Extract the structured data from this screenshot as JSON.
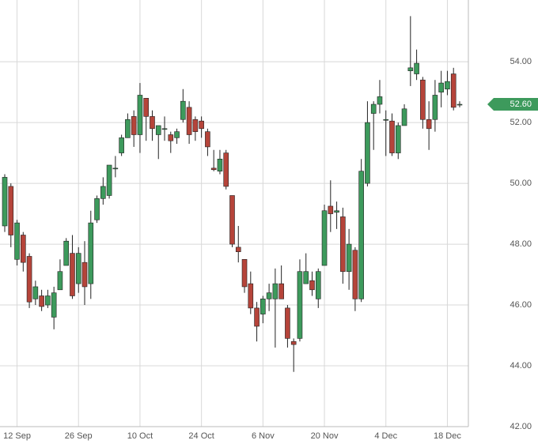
{
  "chart_data": {
    "type": "candlestick",
    "categories": [
      null,
      null,
      "12 Sep",
      null,
      null,
      null,
      null,
      null,
      null,
      null,
      null,
      null,
      "26 Sep",
      null,
      null,
      null,
      null,
      null,
      null,
      null,
      null,
      null,
      "10 Oct",
      null,
      null,
      null,
      null,
      null,
      null,
      null,
      null,
      null,
      "24 Oct",
      null,
      null,
      null,
      null,
      null,
      null,
      null,
      null,
      null,
      "6 Nov",
      null,
      null,
      null,
      null,
      null,
      null,
      null,
      null,
      null,
      "20 Nov",
      null,
      null,
      null,
      null,
      null,
      null,
      null,
      null,
      null,
      "4 Dec",
      null,
      null,
      null,
      null,
      null,
      null,
      null,
      null,
      null,
      "18 Dec",
      null,
      null
    ],
    "open": [
      48.6,
      49.9,
      47.5,
      48.3,
      47.6,
      46.2,
      46.3,
      46.0,
      45.6,
      46.5,
      47.3,
      47.7,
      46.7,
      47.4,
      46.7,
      48.8,
      49.5,
      49.6,
      50.5,
      51.0,
      51.5,
      52.2,
      51.6,
      52.8,
      52.2,
      51.6,
      51.8,
      51.6,
      51.5,
      52.1,
      52.5,
      52.1,
      52.05,
      51.7,
      50.5,
      50.4,
      51.0,
      49.6,
      47.9,
      47.5,
      46.7,
      45.9,
      45.7,
      46.2,
      46.2,
      46.7,
      45.9,
      44.8,
      44.9,
      46.7,
      46.8,
      46.2,
      47.3,
      49.25,
      49.05,
      48.9,
      47.1,
      47.8,
      46.2,
      50.0,
      52.3,
      52.6,
      52.1,
      52.05,
      51.0,
      51.9,
      53.7,
      53.6,
      53.4,
      52.1,
      52.1,
      53.0,
      53.1,
      53.6,
      52.6
    ],
    "high": [
      50.3,
      50.0,
      48.8,
      48.4,
      47.7,
      46.8,
      46.5,
      46.5,
      46.6,
      47.5,
      48.2,
      48.3,
      47.9,
      48.1,
      49.1,
      49.6,
      50.2,
      50.6,
      50.9,
      51.6,
      52.3,
      52.4,
      53.3,
      52.8,
      52.4,
      51.9,
      52.2,
      51.7,
      51.8,
      53.1,
      52.7,
      52.2,
      52.2,
      51.8,
      51.1,
      51.1,
      51.1,
      49.6,
      48.6,
      47.5,
      47.1,
      46.1,
      46.3,
      46.7,
      47.2,
      47.3,
      46.0,
      44.9,
      47.5,
      47.7,
      47.1,
      47.2,
      49.3,
      50.1,
      49.4,
      49.2,
      48.5,
      47.9,
      50.8,
      52.7,
      52.7,
      53.4,
      52.4,
      52.3,
      52.0,
      52.6,
      55.5,
      54.4,
      53.5,
      52.7,
      53.4,
      53.7,
      53.7,
      53.8,
      52.7
    ],
    "low": [
      48.4,
      47.9,
      47.3,
      47.1,
      45.9,
      46.0,
      45.8,
      45.9,
      45.2,
      46.5,
      47.3,
      46.2,
      46.4,
      46.0,
      46.2,
      48.7,
      49.3,
      49.5,
      50.2,
      50.9,
      51.5,
      51.2,
      51.0,
      51.4,
      51.4,
      50.8,
      51.4,
      51.0,
      51.3,
      52.0,
      51.3,
      51.4,
      51.5,
      50.9,
      50.4,
      50.3,
      49.8,
      47.9,
      47.4,
      46.4,
      45.7,
      44.8,
      45.4,
      45.8,
      44.6,
      46.2,
      44.6,
      43.8,
      44.8,
      46.7,
      46.3,
      45.9,
      47.3,
      48.4,
      48.5,
      46.7,
      46.5,
      45.8,
      46.1,
      49.9,
      51.1,
      52.3,
      50.9,
      50.9,
      50.8,
      51.9,
      53.2,
      53.4,
      51.8,
      51.1,
      51.7,
      52.5,
      52.9,
      52.4,
      52.5
    ],
    "close": [
      50.2,
      48.3,
      48.7,
      47.4,
      46.1,
      46.6,
      45.95,
      46.3,
      46.4,
      47.1,
      48.1,
      46.3,
      47.7,
      46.6,
      48.7,
      49.5,
      49.9,
      50.6,
      50.5,
      51.5,
      52.1,
      51.6,
      52.9,
      52.2,
      51.8,
      51.9,
      51.8,
      51.4,
      51.7,
      52.7,
      51.6,
      51.7,
      51.8,
      51.2,
      50.45,
      50.8,
      49.9,
      48.0,
      47.75,
      46.6,
      45.9,
      45.3,
      46.2,
      46.4,
      46.7,
      46.2,
      44.9,
      44.7,
      47.1,
      47.1,
      46.5,
      47.1,
      49.1,
      49.0,
      49.1,
      47.1,
      48.0,
      46.2,
      50.4,
      52.0,
      52.6,
      52.85,
      52.1,
      51.0,
      51.9,
      52.45,
      53.8,
      53.95,
      52.1,
      51.8,
      52.9,
      53.3,
      53.35,
      52.5,
      52.6
    ],
    "up_color": "#3d9a5c",
    "down_color": "#b5443a",
    "ylim": [
      42,
      56.03
    ],
    "yticks": [
      {
        "value": 42,
        "label": "42.00"
      },
      {
        "value": 44,
        "label": "44.00"
      },
      {
        "value": 46,
        "label": "46.00"
      },
      {
        "value": 48,
        "label": "48.00"
      },
      {
        "value": 50,
        "label": "50.00"
      },
      {
        "value": 52,
        "label": "52.00"
      },
      {
        "value": 54,
        "label": "54.00"
      }
    ],
    "last_price": {
      "value": 52.6,
      "label": "52.60"
    },
    "grid": true
  }
}
